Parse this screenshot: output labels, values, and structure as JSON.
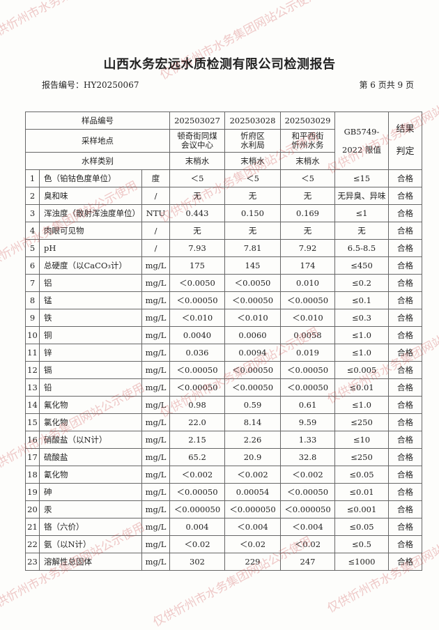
{
  "title": "山西水务宏远水质检测有限公司检测报告",
  "report_no": "报告编号：HY20250067",
  "page_info": "第 6 页共 9 页",
  "header": {
    "sample_no_label": "样品编号",
    "location_label": "采样地点",
    "type_label": "水样类别",
    "limit_label_1": "GB5749-",
    "limit_label_2": "2022 限值",
    "result_label_1": "结果",
    "result_label_2": "判定",
    "samples": [
      {
        "no": "202503027",
        "loc1": "顿奇街同煤",
        "loc2": "会议中心",
        "type": "末梢水"
      },
      {
        "no": "202503028",
        "loc1": "忻府区",
        "loc2": "水利局",
        "type": "末梢水"
      },
      {
        "no": "202503029",
        "loc1": "和平西街",
        "loc2": "忻州水务",
        "type": "末梢水"
      }
    ]
  },
  "rows": [
    {
      "n": "1",
      "item": "色（铂钴色度单位）",
      "unit": "度",
      "v": [
        "＜5",
        "＜5",
        "＜5"
      ],
      "limit": "≤15",
      "result": "合格"
    },
    {
      "n": "2",
      "item": "臭和味",
      "unit": "/",
      "v": [
        "无",
        "无",
        "无"
      ],
      "limit": "无异臭、异味",
      "result": "合格"
    },
    {
      "n": "3",
      "item": "浑浊度（散射浑浊度单位）",
      "unit": "NTU",
      "v": [
        "0.443",
        "0.150",
        "0.169"
      ],
      "limit": "≤1",
      "result": "合格"
    },
    {
      "n": "4",
      "item": "肉眼可见物",
      "unit": "/",
      "v": [
        "无",
        "无",
        "无"
      ],
      "limit": "无",
      "result": "合格"
    },
    {
      "n": "5",
      "item": "pH",
      "unit": "/",
      "v": [
        "7.93",
        "7.81",
        "7.92"
      ],
      "limit": "6.5-8.5",
      "result": "合格"
    },
    {
      "n": "6",
      "item": "总硬度（以CaCO₃计）",
      "unit": "mg/L",
      "v": [
        "175",
        "145",
        "174"
      ],
      "limit": "≤450",
      "result": "合格"
    },
    {
      "n": "7",
      "item": "铝",
      "unit": "mg/L",
      "v": [
        "＜0.0050",
        "＜0.0050",
        "0.010"
      ],
      "limit": "≤0.2",
      "result": "合格"
    },
    {
      "n": "8",
      "item": "锰",
      "unit": "mg/L",
      "v": [
        "＜0.00050",
        "＜0.00050",
        "＜0.00050"
      ],
      "limit": "≤0.1",
      "result": "合格"
    },
    {
      "n": "9",
      "item": "铁",
      "unit": "mg/L",
      "v": [
        "＜0.010",
        "＜0.010",
        "＜0.010"
      ],
      "limit": "≤0.3",
      "result": "合格"
    },
    {
      "n": "10",
      "item": "铜",
      "unit": "mg/L",
      "v": [
        "0.0040",
        "0.0060",
        "0.0058"
      ],
      "limit": "≤1.0",
      "result": "合格"
    },
    {
      "n": "11",
      "item": "锌",
      "unit": "mg/L",
      "v": [
        "0.036",
        "0.0094",
        "0.019"
      ],
      "limit": "≤1.0",
      "result": "合格"
    },
    {
      "n": "12",
      "item": "镉",
      "unit": "mg/L",
      "v": [
        "＜0.00050",
        "＜0.00050",
        "＜0.00050"
      ],
      "limit": "≤0.005",
      "result": "合格"
    },
    {
      "n": "13",
      "item": "铅",
      "unit": "mg/L",
      "v": [
        "＜0.00050",
        "＜0.00050",
        "＜0.00050"
      ],
      "limit": "≤0.01",
      "result": "合格"
    },
    {
      "n": "14",
      "item": "氟化物",
      "unit": "mg/L",
      "v": [
        "0.98",
        "0.59",
        "0.61"
      ],
      "limit": "≤1.0",
      "result": "合格"
    },
    {
      "n": "15",
      "item": "氯化物",
      "unit": "mg/L",
      "v": [
        "22.0",
        "8.14",
        "9.59"
      ],
      "limit": "≤250",
      "result": "合格"
    },
    {
      "n": "16",
      "item": "硝酸盐（以N计）",
      "unit": "mg/L",
      "v": [
        "2.15",
        "2.26",
        "1.33"
      ],
      "limit": "≤10",
      "result": "合格"
    },
    {
      "n": "17",
      "item": "硫酸盐",
      "unit": "mg/L",
      "v": [
        "65.2",
        "20.9",
        "32.8"
      ],
      "limit": "≤250",
      "result": "合格"
    },
    {
      "n": "18",
      "item": "氰化物",
      "unit": "mg/L",
      "v": [
        "＜0.002",
        "＜0.002",
        "＜0.002"
      ],
      "limit": "≤0.05",
      "result": "合格"
    },
    {
      "n": "19",
      "item": "砷",
      "unit": "mg/L",
      "v": [
        "＜0.00050",
        "0.00054",
        "＜0.00050"
      ],
      "limit": "≤0.01",
      "result": "合格"
    },
    {
      "n": "20",
      "item": "汞",
      "unit": "mg/L",
      "v": [
        "＜0.000050",
        "＜0.000050",
        "＜0.000050"
      ],
      "limit": "≤0.001",
      "result": "合格"
    },
    {
      "n": "21",
      "item": "铬（六价）",
      "unit": "mg/L",
      "v": [
        "0.004",
        "＜0.004",
        "＜0.004"
      ],
      "limit": "≤0.05",
      "result": "合格"
    },
    {
      "n": "22",
      "item": "氨（以N计）",
      "unit": "mg/L",
      "v": [
        "＜0.02",
        "＜0.02",
        "＜0.02"
      ],
      "limit": "≤0.5",
      "result": "合格"
    },
    {
      "n": "23",
      "item": "溶解性总固体",
      "unit": "mg/L",
      "v": [
        "302",
        "229",
        "247"
      ],
      "limit": "≤1000",
      "result": "合格"
    }
  ],
  "watermark": "仅供忻州市水务集团网站公示使用"
}
